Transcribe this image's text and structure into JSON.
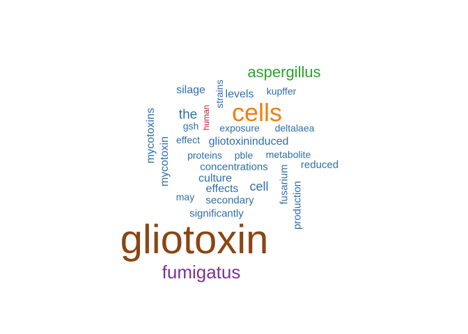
{
  "words": [
    {
      "text": "gliotoxin",
      "color": "#8b4513"
    },
    {
      "text": "fumigatus",
      "color": "#7b3294"
    },
    {
      "text": "cells",
      "color": "#f07f0f"
    },
    {
      "text": "aspergillus",
      "color": "#2ca02c"
    },
    {
      "text": "human",
      "color": "#c0142e"
    },
    {
      "text": "silage",
      "color": "#2f6ea5"
    },
    {
      "text": "levels",
      "color": "#2f6ea5"
    },
    {
      "text": "kupffer",
      "color": "#2f6ea5"
    },
    {
      "text": "strains",
      "color": "#2f6ea5"
    },
    {
      "text": "the",
      "color": "#2f6ea5"
    },
    {
      "text": "gsh",
      "color": "#2f6ea5"
    },
    {
      "text": "exposure",
      "color": "#2f6ea5"
    },
    {
      "text": "deltalaea",
      "color": "#2f6ea5"
    },
    {
      "text": "effect",
      "color": "#2f6ea5"
    },
    {
      "text": "gliotoxininduced",
      "color": "#2f6ea5"
    },
    {
      "text": "mycotoxins",
      "color": "#2f6ea5"
    },
    {
      "text": "mycotoxin",
      "color": "#2f6ea5"
    },
    {
      "text": "proteins",
      "color": "#2f6ea5"
    },
    {
      "text": "pble",
      "color": "#2f6ea5"
    },
    {
      "text": "metabolite",
      "color": "#2f6ea5"
    },
    {
      "text": "concentrations",
      "color": "#2f6ea5"
    },
    {
      "text": "reduced",
      "color": "#2f6ea5"
    },
    {
      "text": "fusarium",
      "color": "#2f6ea5"
    },
    {
      "text": "production",
      "color": "#2f6ea5"
    },
    {
      "text": "culture",
      "color": "#2f6ea5"
    },
    {
      "text": "cell",
      "color": "#2f6ea5"
    },
    {
      "text": "effects",
      "color": "#2f6ea5"
    },
    {
      "text": "may",
      "color": "#2f6ea5"
    },
    {
      "text": "secondary",
      "color": "#2f6ea5"
    },
    {
      "text": "significantly",
      "color": "#2f6ea5"
    }
  ]
}
